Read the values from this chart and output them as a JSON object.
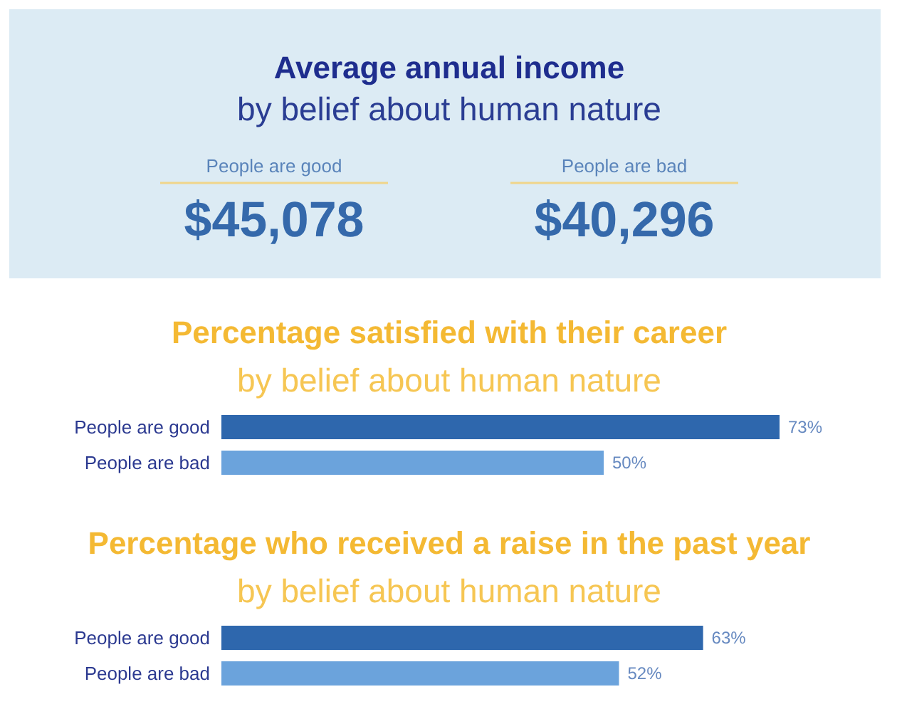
{
  "chart_data": [
    {
      "type": "other",
      "title": "Average annual income",
      "subtitle": "by belief about human nature",
      "annotations": [
        "People are good",
        "$45,078",
        "People are bad",
        "$40,296"
      ]
    },
    {
      "type": "bar",
      "orientation": "horizontal",
      "title": "Percentage satisfied with their career",
      "subtitle": "by belief about human nature",
      "categories": [
        "People are good",
        "People are bad"
      ],
      "values": [
        73,
        50
      ],
      "colors": [
        "#2e67ad",
        "#6ba3dc"
      ],
      "value_labels": [
        "73%",
        "50%"
      ],
      "tick_labels": "y"
    },
    {
      "type": "bar",
      "orientation": "horizontal",
      "title": "Percentage who received a raise in the past year",
      "subtitle": "by belief about human nature",
      "categories": [
        "People are good",
        "People are bad"
      ],
      "values": [
        63,
        52
      ],
      "colors": [
        "#2e67ad",
        "#6ba3dc"
      ],
      "value_labels": [
        "63%",
        "52%"
      ],
      "tick_labels": "y"
    }
  ]
}
